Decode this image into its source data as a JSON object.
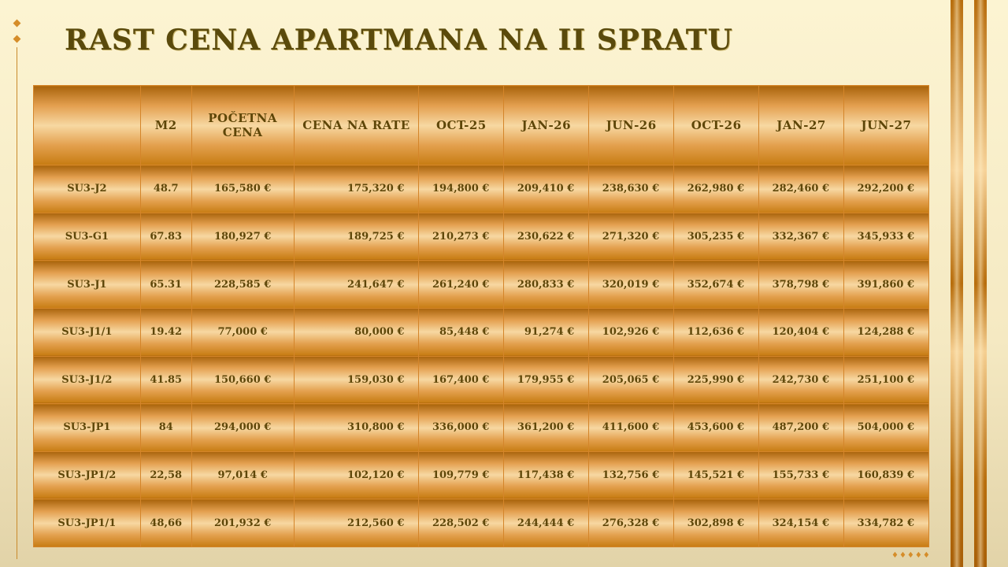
{
  "title": "RAST CENA APARTMANA NA II SPRATU",
  "table": {
    "headers": [
      "",
      "M2",
      "POČETNA CENA",
      "CENA NA RATE",
      "OCT-25",
      "JAN-26",
      "JUN-26",
      "OCT-26",
      "JAN-27",
      "JUN-27"
    ],
    "rows": [
      [
        "SU3-J2",
        "48.7",
        "165,580 €",
        "175,320 €",
        "194,800 €",
        "209,410 €",
        "238,630 €",
        "262,980 €",
        "282,460 €",
        "292,200 €"
      ],
      [
        "SU3-G1",
        "67.83",
        "180,927 €",
        "189,725 €",
        "210,273 €",
        "230,622 €",
        "271,320 €",
        "305,235 €",
        "332,367 €",
        "345,933 €"
      ],
      [
        "SU3-J1",
        "65.31",
        "228,585 €",
        "241,647 €",
        "261,240 €",
        "280,833 €",
        "320,019 €",
        "352,674 €",
        "378,798 €",
        "391,860 €"
      ],
      [
        "SU3-J1/1",
        "19.42",
        "77,000 €",
        "80,000 €",
        "85,448 €",
        "91,274 €",
        "102,926 €",
        "112,636 €",
        "120,404 €",
        "124,288 €"
      ],
      [
        "SU3-J1/2",
        "41.85",
        "150,660 €",
        "159,030 €",
        "167,400 €",
        "179,955 €",
        "205,065 €",
        "225,990 €",
        "242,730 €",
        "251,100 €"
      ],
      [
        "SU3-JP1",
        "84",
        "294,000 €",
        "310,800 €",
        "336,000 €",
        "361,200 €",
        "411,600 €",
        "453,600 €",
        "487,200 €",
        "504,000 €"
      ],
      [
        "SU3-JP1/2",
        "22,58",
        "97,014 €",
        "102,120 €",
        "109,779 €",
        "117,438 €",
        "132,756 €",
        "145,521 €",
        "155,733 €",
        "160,839 €"
      ],
      [
        "SU3-JP1/1",
        "48,66",
        "201,932 €",
        "212,560 €",
        "228,502 €",
        "244,444 €",
        "276,328 €",
        "302,898 €",
        "324,154 €",
        "334,782 €"
      ]
    ]
  },
  "colors": {
    "title": "#5a4a0c",
    "cell_text": "#5e4608",
    "gold_dark": "#a9640c",
    "gold_light": "#f7d8a2"
  }
}
